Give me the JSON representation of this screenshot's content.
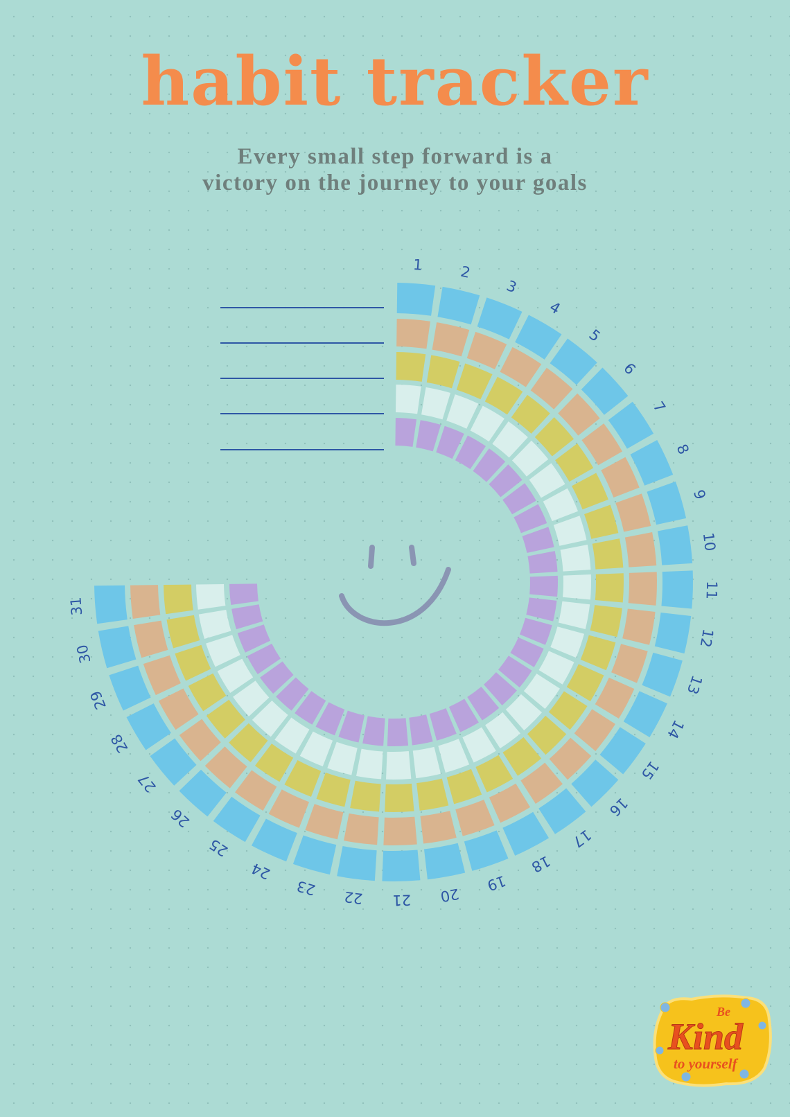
{
  "title": "habit tracker",
  "subtitle": {
    "line1": "Every small step forward is a",
    "line2": "victory on the journey to your goals"
  },
  "habit_lines": [
    "",
    "",
    "",
    "",
    ""
  ],
  "days": [
    "1",
    "2",
    "3",
    "4",
    "5",
    "6",
    "7",
    "8",
    "9",
    "10",
    "11",
    "12",
    "13",
    "14",
    "15",
    "16",
    "17",
    "18",
    "19",
    "20",
    "21",
    "22",
    "23",
    "24",
    "25",
    "26",
    "27",
    "28",
    "29",
    "30",
    "31"
  ],
  "rings": [
    {
      "name": "ring-1",
      "color": "#6ec6e8"
    },
    {
      "name": "ring-2",
      "color": "#d9b48f"
    },
    {
      "name": "ring-3",
      "color": "#d3cd64"
    },
    {
      "name": "ring-4",
      "color": "#d9efec"
    },
    {
      "name": "ring-5",
      "color": "#b9a3dc"
    }
  ],
  "colors": {
    "background": "#acdbd4",
    "title": "#f48c4c",
    "subtitle": "#6f7f7c",
    "day_label": "#2e57a5",
    "smiley": "#8a95b3"
  },
  "icons": {
    "smiley": "smiley-face-icon",
    "sticker": "be-kind-sticker-icon"
  },
  "sticker": {
    "line1": "Be",
    "line2": "Kind",
    "line3": "to yourself"
  }
}
